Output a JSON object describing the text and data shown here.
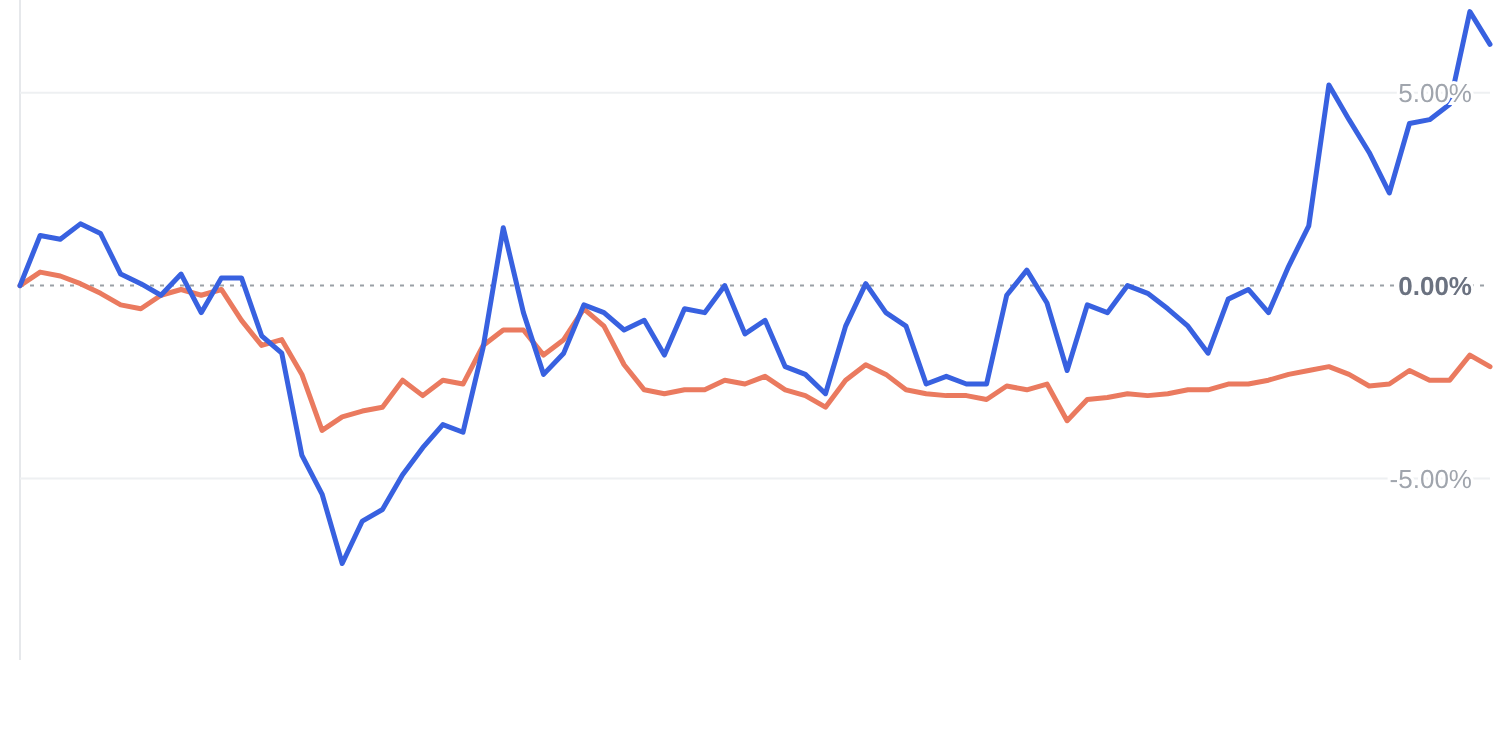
{
  "chart_data": {
    "type": "line",
    "categories": [
      null,
      null,
      null,
      null,
      null,
      null,
      null,
      null,
      null,
      null,
      null,
      null,
      null,
      null,
      null,
      null,
      null,
      null,
      null,
      null,
      null,
      null,
      null,
      null,
      null,
      null,
      null,
      null,
      null,
      null,
      null,
      null,
      null,
      null,
      null,
      null,
      null,
      null,
      null,
      null,
      null,
      null,
      null,
      null,
      null,
      null,
      null,
      null,
      null,
      null,
      null,
      null,
      null,
      null,
      null,
      null,
      null,
      null,
      null,
      null,
      null,
      null,
      null,
      null,
      null,
      null,
      null,
      null,
      null,
      null,
      null,
      null,
      null,
      null
    ],
    "series": [
      {
        "color": "#ea7a5f",
        "values": [
          0,
          0.35,
          0.25,
          0.05,
          -0.2,
          -0.5,
          -0.6,
          -0.25,
          -0.1,
          -0.25,
          -0.1,
          -0.9,
          -1.55,
          -1.4,
          -2.3,
          -3.75,
          -3.4,
          -3.25,
          -3.15,
          -2.45,
          -2.85,
          -2.45,
          -2.55,
          -1.55,
          -1.15,
          -1.15,
          -1.8,
          -1.4,
          -0.6,
          -1.05,
          -2.05,
          -2.7,
          -2.8,
          -2.7,
          -2.7,
          -2.45,
          -2.55,
          -2.35,
          -2.7,
          -2.85,
          -3.15,
          -2.45,
          -2.05,
          -2.3,
          -2.7,
          -2.8,
          -2.85,
          -2.85,
          -2.95,
          -2.6,
          -2.7,
          -2.55,
          -3.5,
          -2.95,
          -2.9,
          -2.8,
          -2.85,
          -2.8,
          -2.7,
          -2.7,
          -2.55,
          -2.55,
          -2.45,
          -2.3,
          -2.2,
          -2.1,
          -2.3,
          -2.6,
          -2.55,
          -2.2,
          -2.45,
          -2.45,
          -1.8,
          -2.1
        ]
      },
      {
        "color": "#3861e0",
        "values": [
          0,
          1.3,
          1.2,
          1.6,
          1.35,
          0.3,
          0.05,
          -0.25,
          0.3,
          -0.7,
          0.2,
          0.2,
          -1.3,
          -1.75,
          -4.4,
          -5.4,
          -7.2,
          -6.1,
          -5.8,
          -4.9,
          -4.2,
          -3.6,
          -3.8,
          -1.6,
          1.5,
          -0.7,
          -2.3,
          -1.75,
          -0.5,
          -0.7,
          -1.15,
          -0.9,
          -1.8,
          -0.6,
          -0.7,
          0,
          -1.25,
          -0.9,
          -2.1,
          -2.3,
          -2.8,
          -1.05,
          0.05,
          -0.7,
          -1.05,
          -2.55,
          -2.35,
          -2.55,
          -2.55,
          -0.25,
          0.4,
          -0.45,
          -2.2,
          -0.5,
          -0.7,
          0,
          -0.2,
          -0.6,
          -1.05,
          -1.75,
          -0.35,
          -0.1,
          -0.7,
          0.5,
          1.55,
          5.2,
          4.3,
          3.45,
          2.4,
          4.2,
          4.3,
          4.7,
          7.1,
          6.25
        ]
      }
    ],
    "ylim": [
      -9.7,
      7.4
    ],
    "yticks": [
      {
        "value": -5,
        "label": "-5.00%"
      },
      {
        "value": 0,
        "label": "0.00%"
      },
      {
        "value": 5,
        "label": "5.00%"
      }
    ],
    "grid": "y",
    "tick_labels": "y",
    "ref_lines": [
      {
        "axis": "y",
        "value": 0,
        "color": "#9aa0a6",
        "line_style": "dotted"
      }
    ]
  }
}
